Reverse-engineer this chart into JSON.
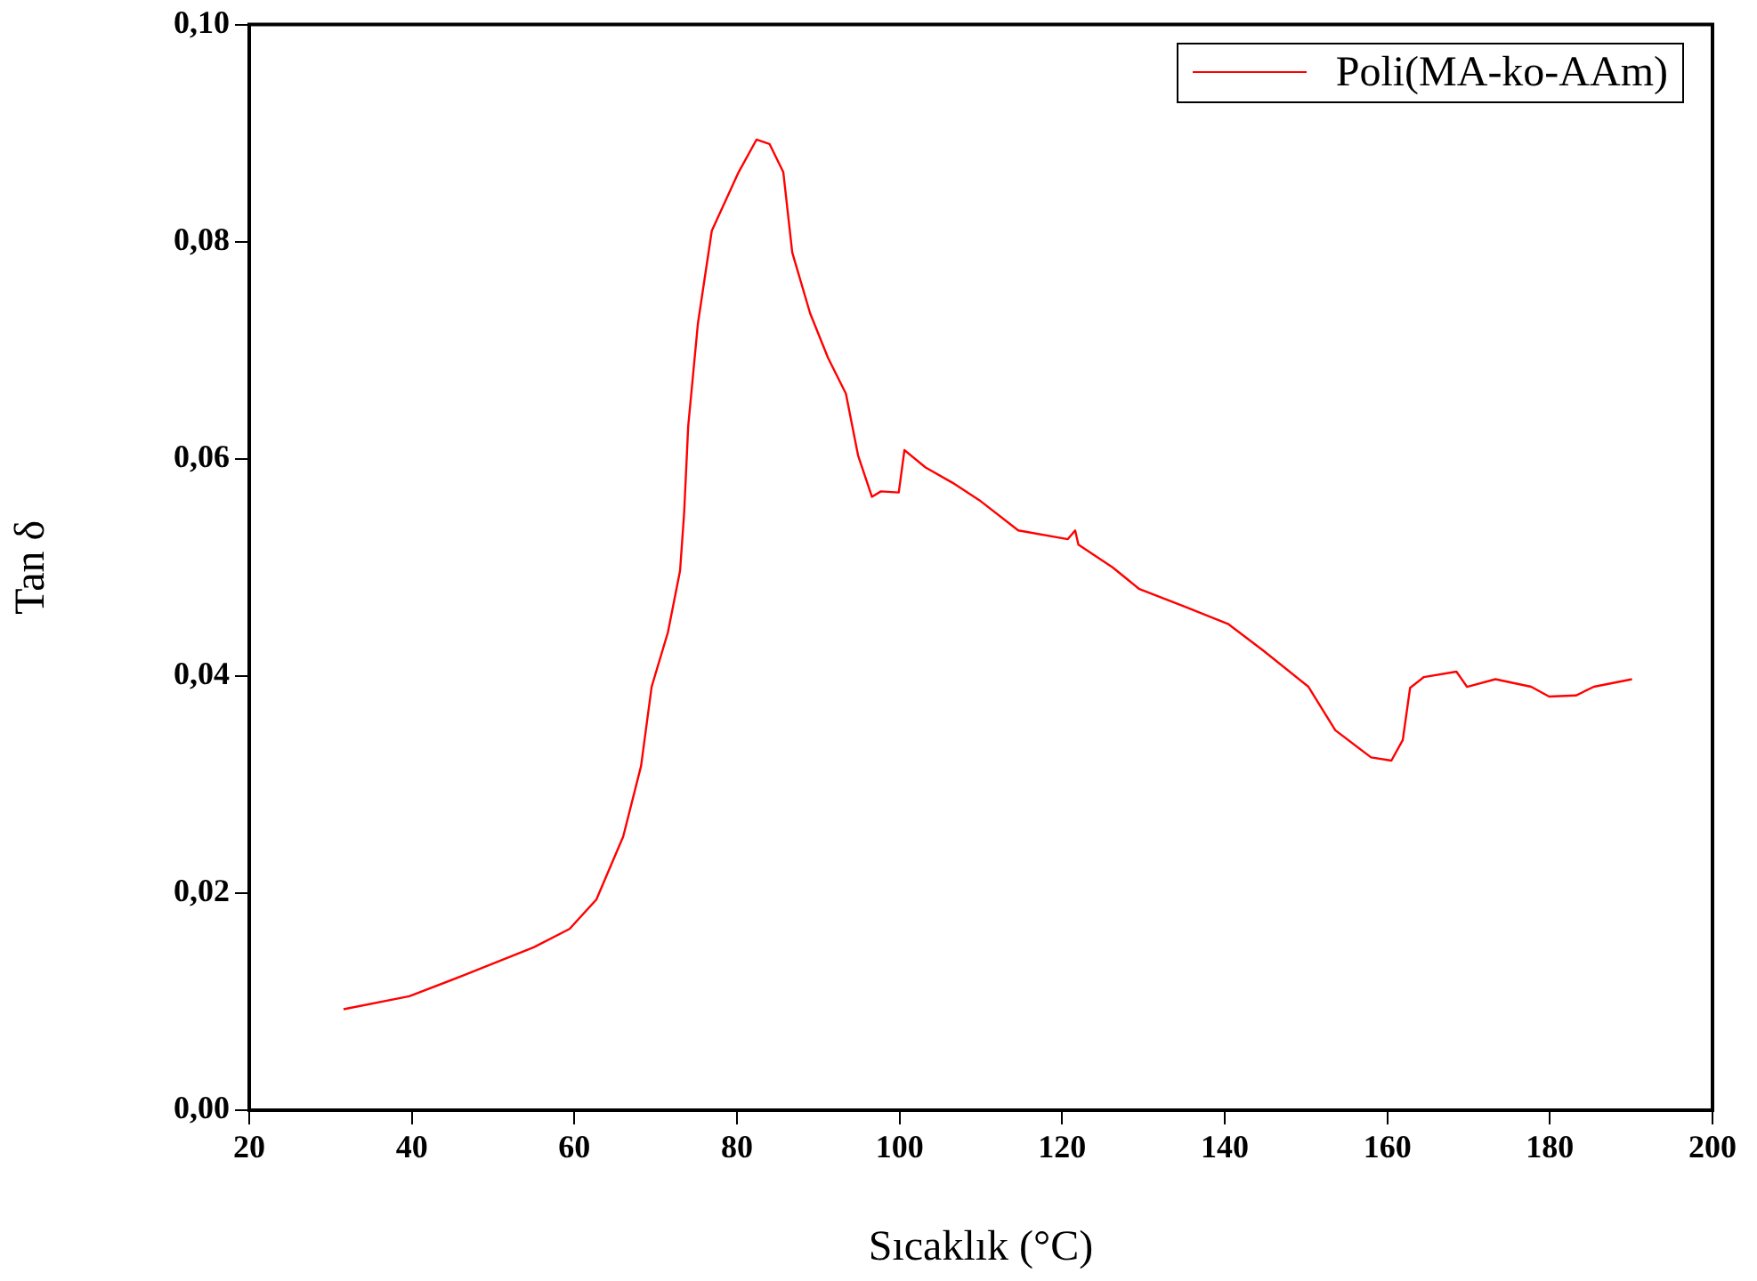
{
  "chart_data": {
    "type": "line",
    "xlabel": "Sıcaklık (°C)",
    "ylabel": "Tan δ",
    "xlim": [
      20,
      200
    ],
    "xticks": [
      20,
      40,
      60,
      80,
      100,
      120,
      140,
      160,
      180,
      200
    ],
    "ylim": [
      0,
      0.1
    ],
    "yticks": [
      {
        "value": 0,
        "label": "0,00"
      },
      {
        "value": 0.02,
        "label": "0,02"
      },
      {
        "value": 0.04,
        "label": "0,04"
      },
      {
        "value": 0.06,
        "label": "0,06"
      },
      {
        "value": 0.08,
        "label": "0,08"
      },
      {
        "value": 0.1,
        "label": "0,10"
      }
    ],
    "grid": false,
    "legend": "top right",
    "marker": "none",
    "line_style": "solid",
    "x": [
      31.6,
      39.7,
      46.3,
      55,
      59.4,
      62.7,
      66,
      68.2,
      69.5,
      71.5,
      73,
      73.5,
      74,
      75.2,
      76.9,
      80.2,
      82.4,
      84,
      85.7,
      86.8,
      89,
      91.2,
      93.4,
      94.9,
      96.6,
      97.7,
      99.9,
      100.6,
      103.2,
      106.5,
      109.8,
      114.6,
      120.7,
      121.6,
      122,
      126.2,
      129.5,
      135,
      140.4,
      144.8,
      150.3,
      153.6,
      158,
      160.5,
      161.9,
      162.8,
      164.5,
      168.5,
      169.8,
      173.3,
      177.7,
      179.9,
      183.2,
      185.4,
      190.1
    ],
    "series": [
      {
        "name": "Poli(MA-ko-AAm)",
        "color": "#ff0000",
        "values": [
          0.0093,
          0.0105,
          0.0124,
          0.015,
          0.0167,
          0.0194,
          0.0252,
          0.0317,
          0.039,
          0.044,
          0.0497,
          0.055,
          0.063,
          0.0725,
          0.081,
          0.0864,
          0.0894,
          0.089,
          0.0864,
          0.079,
          0.0734,
          0.0693,
          0.066,
          0.0603,
          0.0565,
          0.057,
          0.0569,
          0.0608,
          0.0592,
          0.0578,
          0.0562,
          0.0534,
          0.0526,
          0.0534,
          0.0521,
          0.05,
          0.048,
          0.0464,
          0.0448,
          0.0423,
          0.039,
          0.035,
          0.0325,
          0.0322,
          0.0341,
          0.0389,
          0.0399,
          0.0404,
          0.039,
          0.0397,
          0.039,
          0.0381,
          0.0382,
          0.039,
          0.0397
        ]
      }
    ]
  }
}
